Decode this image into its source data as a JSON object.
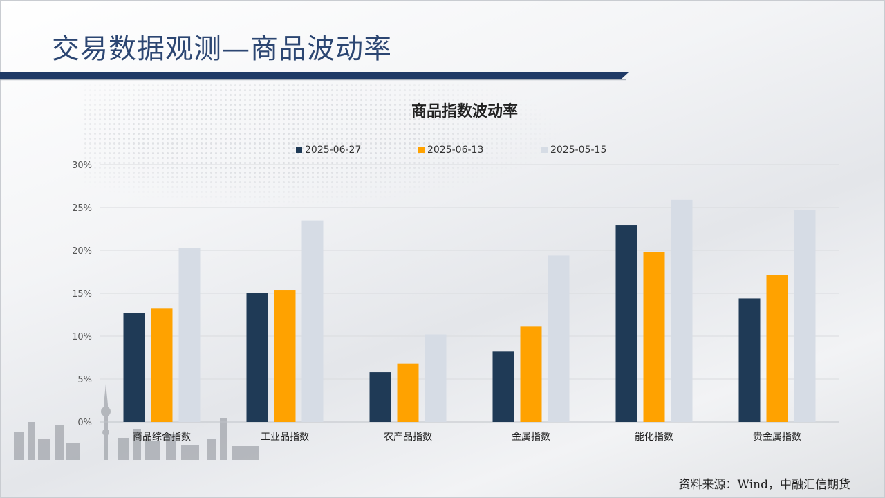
{
  "page": {
    "title": "交易数据观测—商品波动率",
    "source_note": "资料来源：Wind，中融汇信期货"
  },
  "chart_data": {
    "type": "bar",
    "title": "商品指数波动率",
    "categories": [
      "商品综合指数",
      "工业品指数",
      "农产品指数",
      "金属指数",
      "能化指数",
      "贵金属指数"
    ],
    "series": [
      {
        "name": "2025-06-27",
        "color": "#1f3a56",
        "values": [
          12.7,
          15.0,
          5.8,
          8.2,
          22.9,
          14.4
        ]
      },
      {
        "name": "2025-06-13",
        "color": "#ffa200",
        "values": [
          13.2,
          15.4,
          6.8,
          11.1,
          19.8,
          17.1
        ]
      },
      {
        "name": "2025-05-15",
        "color": "#d6dce5",
        "values": [
          20.3,
          23.5,
          10.2,
          19.4,
          25.9,
          24.7
        ]
      }
    ],
    "ylim": [
      0,
      30
    ],
    "yticks": [
      "0%",
      "5%",
      "10%",
      "15%",
      "20%",
      "25%",
      "30%"
    ],
    "ytick_values": [
      0,
      5,
      10,
      15,
      20,
      25,
      30
    ],
    "grid": true,
    "legend_position": "top-center"
  }
}
